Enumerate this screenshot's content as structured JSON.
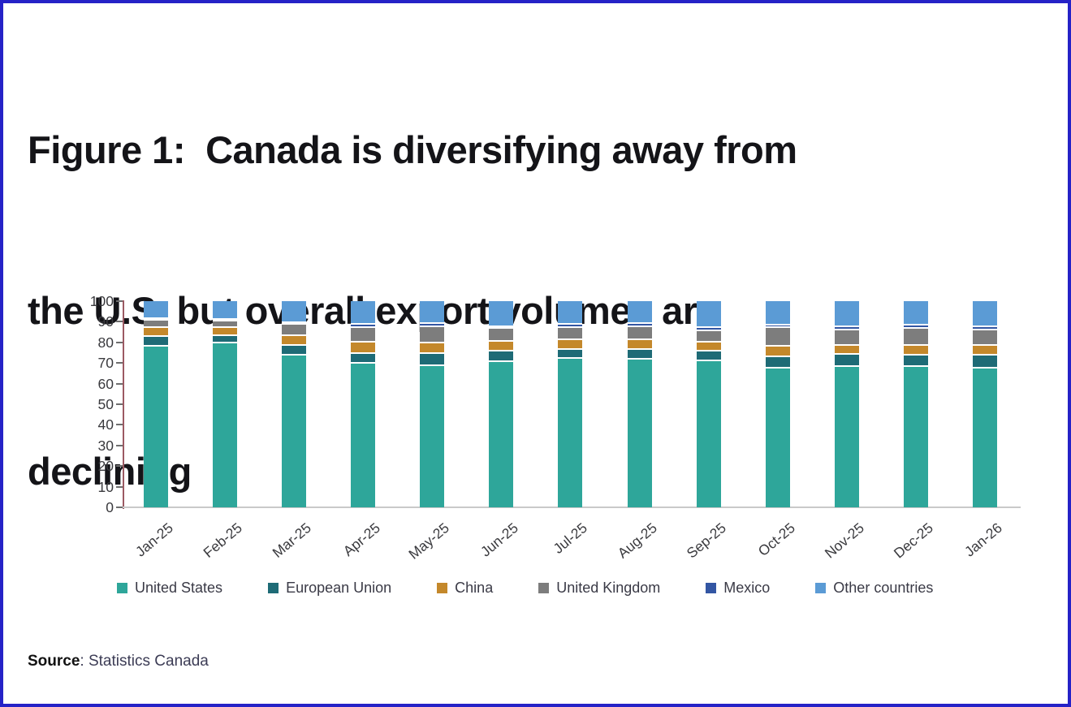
{
  "figure": {
    "title_lines": [
      "Figure 1:  Canada is diversifying away from",
      "the U.S. but overall export volumes are",
      "declining"
    ],
    "source_label": "Source",
    "source_value": ": Statistics Canada"
  },
  "colors": {
    "frame_border": "#2522c7",
    "y_axis_line": "#9c5a63",
    "x_baseline": "#c9c9c9",
    "tick_text": "#3a3a3e",
    "title_text": "#141418",
    "segment_separator": "#ffffff"
  },
  "chart_data": {
    "type": "bar",
    "stacked": true,
    "stack_total": 100,
    "title": "Figure 1: Canada is diversifying away from the U.S. but overall export volumes are declining",
    "xlabel": "",
    "ylabel": "",
    "ylim": [
      0,
      100
    ],
    "yticks": [
      0,
      10,
      20,
      30,
      40,
      50,
      60,
      70,
      80,
      90,
      100
    ],
    "grid": false,
    "legend_position": "bottom",
    "categories": [
      "Jan-25",
      "Feb-25",
      "Mar-25",
      "Apr-25",
      "May-25",
      "Jun-25",
      "Jul-25",
      "Aug-25",
      "Sep-25",
      "Oct-25",
      "Nov-25",
      "Dec-25",
      "Jan-26"
    ],
    "series": [
      {
        "name": "United States",
        "color": "#2ea69a",
        "values": [
          78,
          79.5,
          73.5,
          69.5,
          68.5,
          70.5,
          72,
          71.5,
          71,
          67.5,
          68,
          68,
          67.5
        ]
      },
      {
        "name": "European Union",
        "color": "#1e6b76",
        "values": [
          4.5,
          3.5,
          5,
          5,
          6,
          5.5,
          4.5,
          5,
          4.5,
          5.5,
          6,
          5.5,
          6
        ]
      },
      {
        "name": "China",
        "color": "#c4882b",
        "values": [
          4.5,
          4,
          4.5,
          5.5,
          5,
          4.5,
          4.5,
          4.5,
          4.5,
          5,
          4.5,
          5,
          5
        ]
      },
      {
        "name": "United Kingdom",
        "color": "#7d7d7d",
        "values": [
          3.5,
          3,
          5.5,
          7,
          8,
          6.5,
          6,
          6.5,
          5.5,
          9,
          7.5,
          8,
          7.5
        ]
      },
      {
        "name": "Mexico",
        "color": "#3356a3",
        "values": [
          1,
          1,
          1,
          1.5,
          1.5,
          0.5,
          1.5,
          1.5,
          1.5,
          1,
          1.5,
          1.5,
          1.5
        ]
      },
      {
        "name": "Other countries",
        "color": "#5b9bd5",
        "values": [
          8.5,
          9,
          10.5,
          11.5,
          11,
          12.5,
          11.5,
          11,
          13,
          12,
          12.5,
          12,
          12.5
        ]
      }
    ]
  }
}
